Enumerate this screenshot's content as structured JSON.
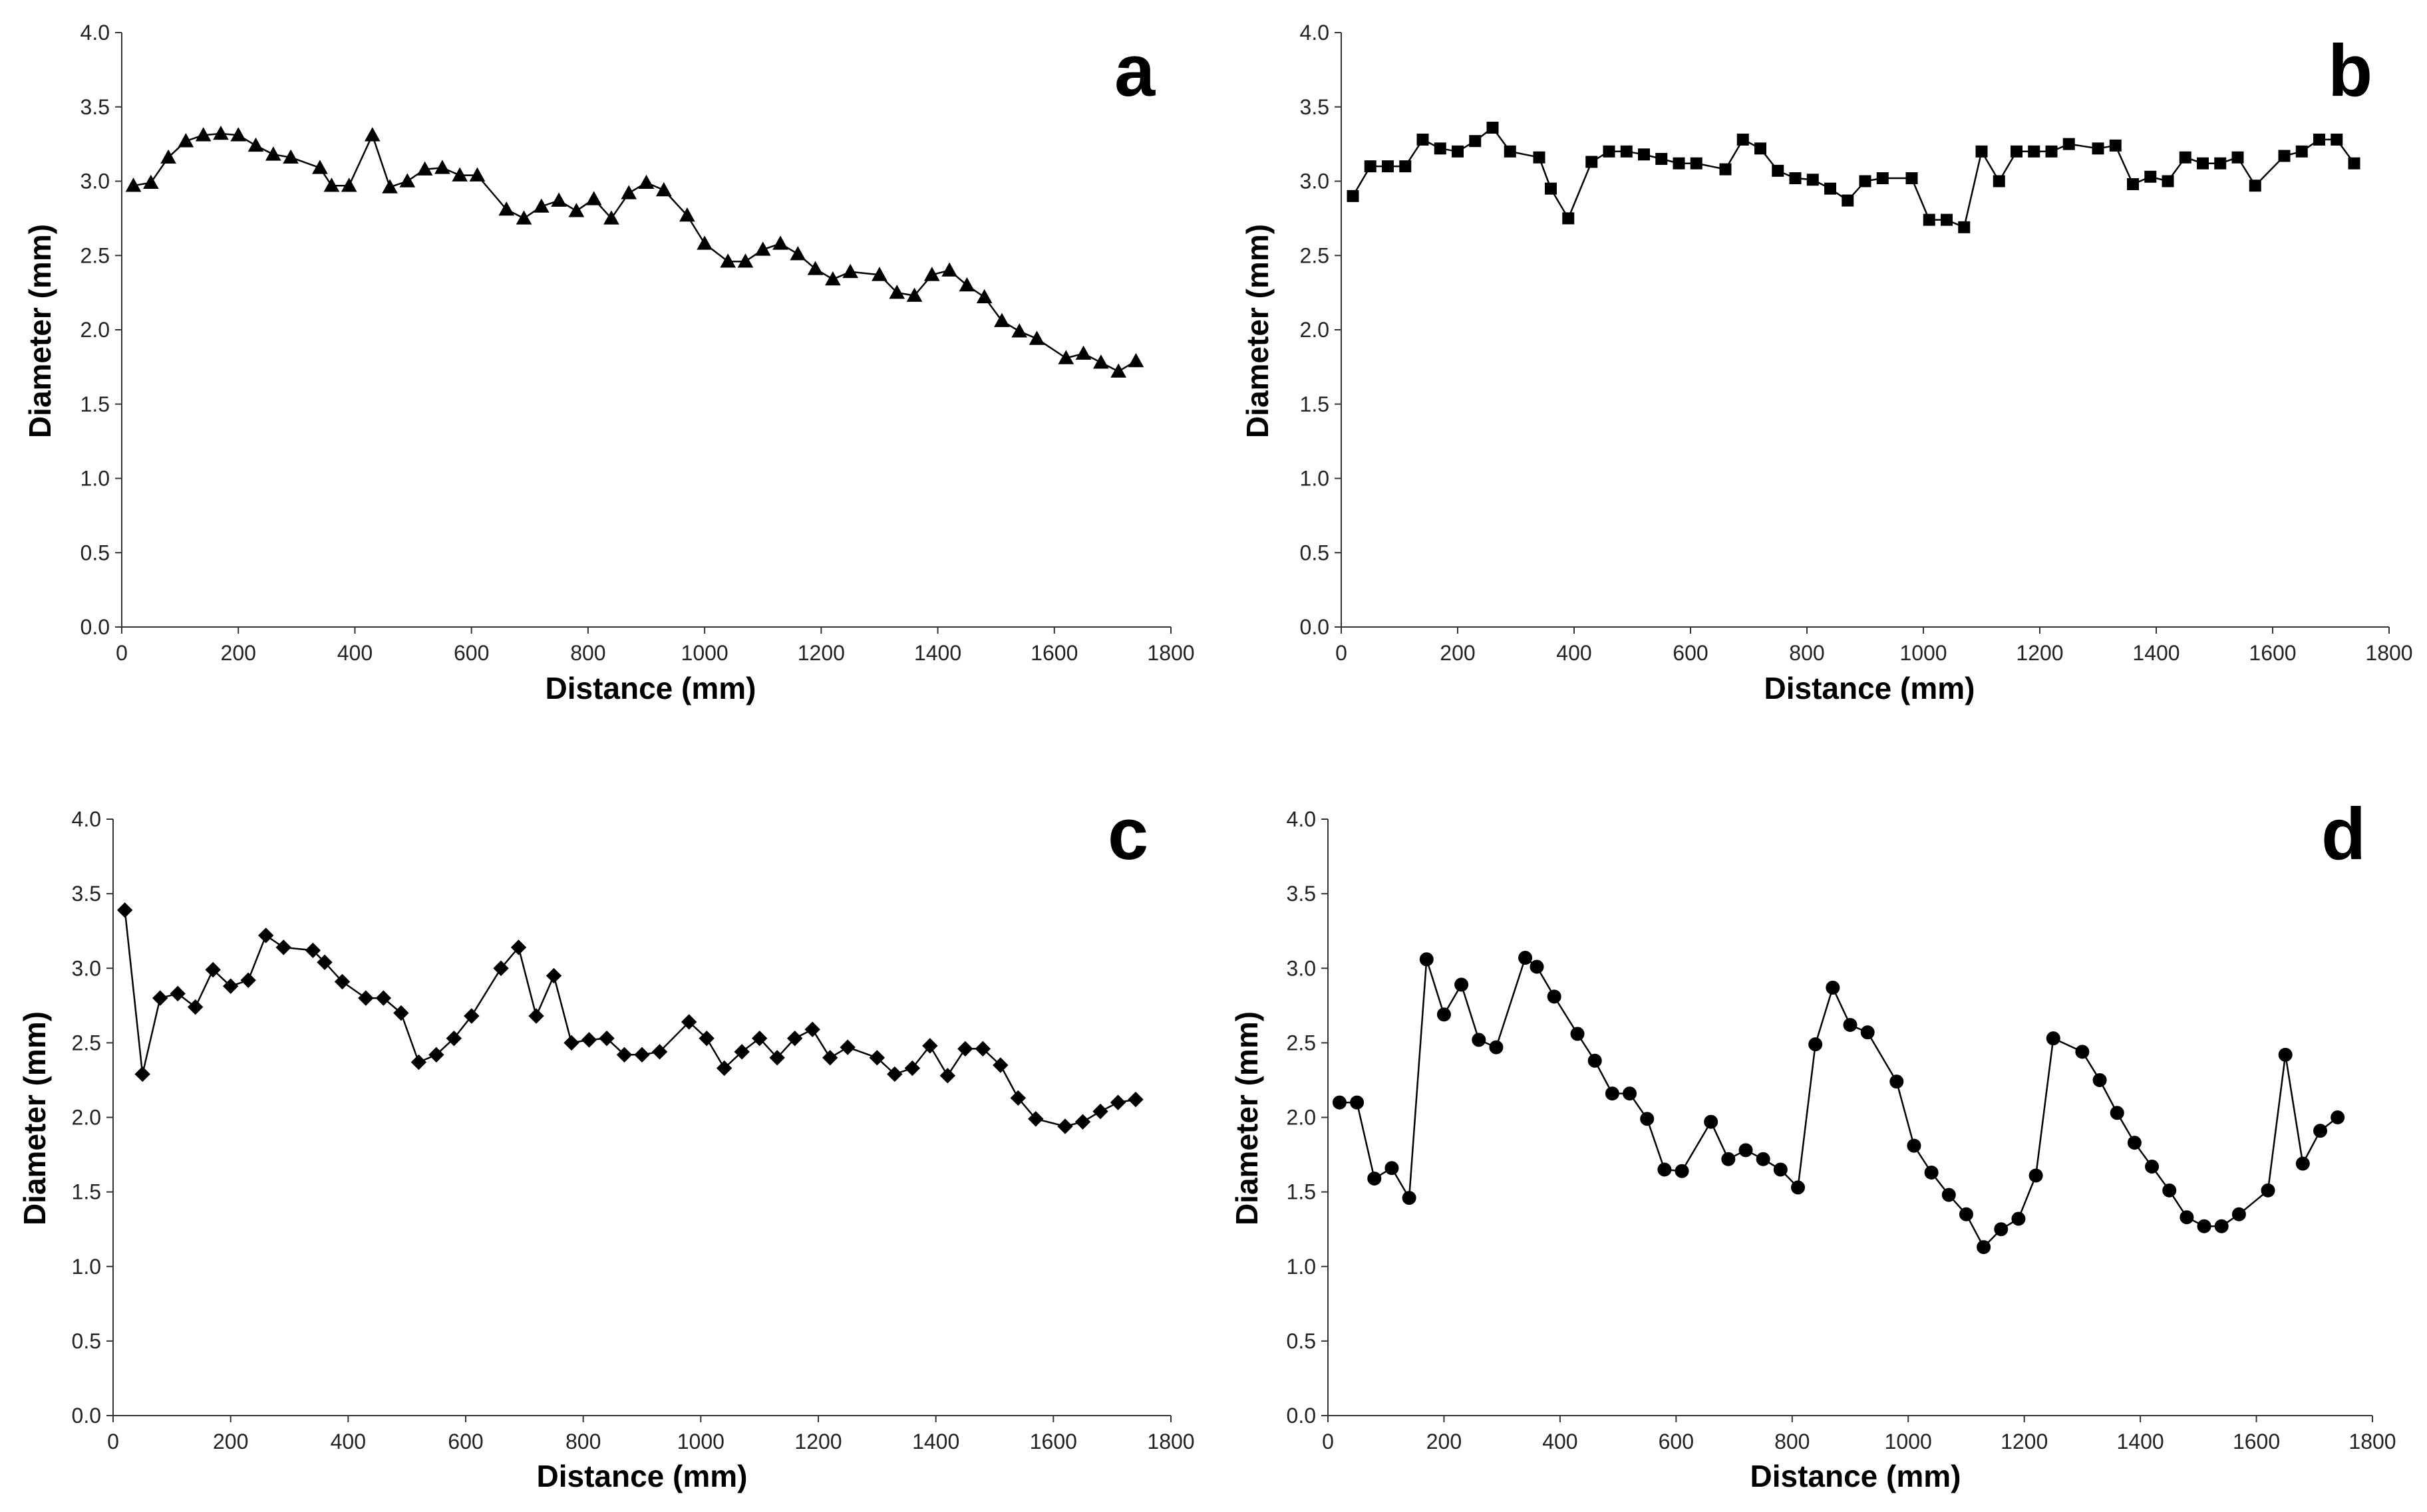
{
  "chart_data": [
    {
      "type": "line",
      "panel": "a",
      "marker": "triangle",
      "xlabel": "Distance (mm)",
      "ylabel": "Diameter (mm)",
      "xlim": [
        0,
        1800
      ],
      "ylim": [
        0,
        4
      ],
      "xticks": [
        "0",
        "200",
        "400",
        "600",
        "800",
        "1000",
        "1200",
        "1400",
        "1600",
        "1800"
      ],
      "yticks": [
        "0.0",
        "0.5",
        "1.0",
        "1.5",
        "2.0",
        "2.5",
        "3.0",
        "3.5",
        "4.0"
      ],
      "x": [
        20,
        50,
        80,
        110,
        140,
        170,
        200,
        230,
        260,
        290,
        340,
        360,
        390,
        430,
        460,
        490,
        520,
        550,
        580,
        610,
        660,
        690,
        720,
        750,
        780,
        810,
        840,
        870,
        900,
        930,
        970,
        1000,
        1040,
        1070,
        1100,
        1130,
        1160,
        1190,
        1220,
        1250,
        1300,
        1330,
        1360,
        1390,
        1420,
        1450,
        1480,
        1510,
        1540,
        1570,
        1620,
        1650,
        1680,
        1710,
        1740
      ],
      "y": [
        2.97,
        2.99,
        3.16,
        3.27,
        3.31,
        3.32,
        3.31,
        3.24,
        3.18,
        3.16,
        3.09,
        2.97,
        2.97,
        3.31,
        2.96,
        3.0,
        3.08,
        3.09,
        3.04,
        3.04,
        2.81,
        2.75,
        2.83,
        2.87,
        2.8,
        2.88,
        2.75,
        2.92,
        2.99,
        2.94,
        2.77,
        2.58,
        2.46,
        2.46,
        2.54,
        2.58,
        2.51,
        2.41,
        2.34,
        2.39,
        2.37,
        2.25,
        2.23,
        2.37,
        2.4,
        2.3,
        2.22,
        2.06,
        1.99,
        1.94,
        1.81,
        1.84,
        1.78,
        1.72,
        1.79
      ]
    },
    {
      "type": "line",
      "panel": "b",
      "marker": "square",
      "xlabel": "Distance (mm)",
      "ylabel": "Diameter (mm)",
      "xlim": [
        0,
        1800
      ],
      "ylim": [
        0,
        4
      ],
      "xticks": [
        "0",
        "200",
        "400",
        "600",
        "800",
        "1000",
        "1200",
        "1400",
        "1600",
        "1800"
      ],
      "yticks": [
        "0.0",
        "0.5",
        "1.0",
        "1.5",
        "2.0",
        "2.5",
        "3.0",
        "3.5",
        "4.0"
      ],
      "x": [
        20,
        50,
        80,
        110,
        140,
        170,
        200,
        230,
        260,
        290,
        340,
        360,
        390,
        430,
        460,
        490,
        520,
        550,
        580,
        610,
        660,
        690,
        720,
        750,
        780,
        810,
        840,
        870,
        900,
        930,
        980,
        1010,
        1040,
        1070,
        1100,
        1130,
        1160,
        1190,
        1220,
        1250,
        1300,
        1330,
        1360,
        1390,
        1420,
        1450,
        1480,
        1510,
        1540,
        1570,
        1620,
        1650,
        1680,
        1710,
        1740
      ],
      "y": [
        2.9,
        3.1,
        3.1,
        3.1,
        3.28,
        3.22,
        3.2,
        3.27,
        3.36,
        3.2,
        3.16,
        2.95,
        2.75,
        3.13,
        3.2,
        3.2,
        3.18,
        3.15,
        3.12,
        3.12,
        3.08,
        3.28,
        3.22,
        3.07,
        3.02,
        3.01,
        2.95,
        2.87,
        3.0,
        3.02,
        3.02,
        2.74,
        2.74,
        2.69,
        3.2,
        3.0,
        3.2,
        3.2,
        3.2,
        3.25,
        3.22,
        3.24,
        2.98,
        3.03,
        3.0,
        3.16,
        3.12,
        3.12,
        3.16,
        2.97,
        3.17,
        3.2,
        3.28,
        3.28,
        3.12
      ]
    },
    {
      "type": "line",
      "panel": "c",
      "marker": "diamond",
      "xlabel": "Distance (mm)",
      "ylabel": "Diameter (mm)",
      "xlim": [
        0,
        1800
      ],
      "ylim": [
        0,
        4
      ],
      "xticks": [
        "0",
        "200",
        "400",
        "600",
        "800",
        "1000",
        "1200",
        "1400",
        "1600",
        "1800"
      ],
      "yticks": [
        "0.0",
        "0.5",
        "1.0",
        "1.5",
        "2.0",
        "2.5",
        "3.0",
        "3.5",
        "4.0"
      ],
      "x": [
        20,
        50,
        80,
        110,
        140,
        170,
        200,
        230,
        260,
        290,
        340,
        360,
        390,
        430,
        460,
        490,
        520,
        550,
        580,
        610,
        660,
        690,
        720,
        750,
        780,
        810,
        840,
        870,
        900,
        930,
        980,
        1010,
        1040,
        1070,
        1100,
        1130,
        1160,
        1190,
        1220,
        1250,
        1300,
        1330,
        1360,
        1390,
        1420,
        1450,
        1480,
        1510,
        1540,
        1570,
        1620,
        1650,
        1680,
        1710,
        1740
      ],
      "y": [
        3.39,
        2.29,
        2.8,
        2.83,
        2.74,
        2.99,
        2.88,
        2.92,
        3.22,
        3.14,
        3.12,
        3.04,
        2.91,
        2.8,
        2.8,
        2.7,
        2.37,
        2.42,
        2.53,
        2.68,
        3.0,
        3.14,
        2.68,
        2.95,
        2.5,
        2.52,
        2.53,
        2.42,
        2.42,
        2.44,
        2.64,
        2.53,
        2.33,
        2.44,
        2.53,
        2.4,
        2.53,
        2.59,
        2.4,
        2.47,
        2.4,
        2.29,
        2.33,
        2.48,
        2.28,
        2.46,
        2.46,
        2.35,
        2.13,
        1.99,
        1.94,
        1.97,
        2.04,
        2.1,
        2.12
      ]
    },
    {
      "type": "line",
      "panel": "d",
      "marker": "circle",
      "xlabel": "Distance (mm)",
      "ylabel": "Diameter (mm)",
      "xlim": [
        0,
        1800
      ],
      "ylim": [
        0,
        4
      ],
      "xticks": [
        "0",
        "200",
        "400",
        "600",
        "800",
        "1000",
        "1200",
        "1400",
        "1600",
        "1800"
      ],
      "yticks": [
        "0.0",
        "0.5",
        "1.0",
        "1.5",
        "2.0",
        "2.5",
        "3.0",
        "3.5",
        "4.0"
      ],
      "x": [
        20,
        50,
        80,
        110,
        140,
        170,
        200,
        230,
        260,
        290,
        340,
        360,
        390,
        430,
        460,
        490,
        520,
        550,
        580,
        610,
        660,
        690,
        720,
        750,
        780,
        810,
        840,
        870,
        900,
        930,
        980,
        1010,
        1040,
        1070,
        1100,
        1130,
        1160,
        1190,
        1220,
        1250,
        1300,
        1330,
        1360,
        1390,
        1420,
        1450,
        1480,
        1510,
        1540,
        1570,
        1620,
        1650,
        1680,
        1710,
        1740
      ],
      "y": [
        2.1,
        2.1,
        1.59,
        1.66,
        1.46,
        3.06,
        2.69,
        2.89,
        2.52,
        2.47,
        3.07,
        3.01,
        2.81,
        2.56,
        2.38,
        2.16,
        2.16,
        1.99,
        1.65,
        1.64,
        1.97,
        1.72,
        1.78,
        1.72,
        1.65,
        1.53,
        2.49,
        2.87,
        2.62,
        2.57,
        2.24,
        1.81,
        1.63,
        1.48,
        1.35,
        1.13,
        1.25,
        1.32,
        1.61,
        2.53,
        2.44,
        2.25,
        2.03,
        1.83,
        1.67,
        1.51,
        1.33,
        1.27,
        1.27,
        1.35,
        1.51,
        2.42,
        1.69,
        1.91,
        2.0
      ]
    }
  ]
}
